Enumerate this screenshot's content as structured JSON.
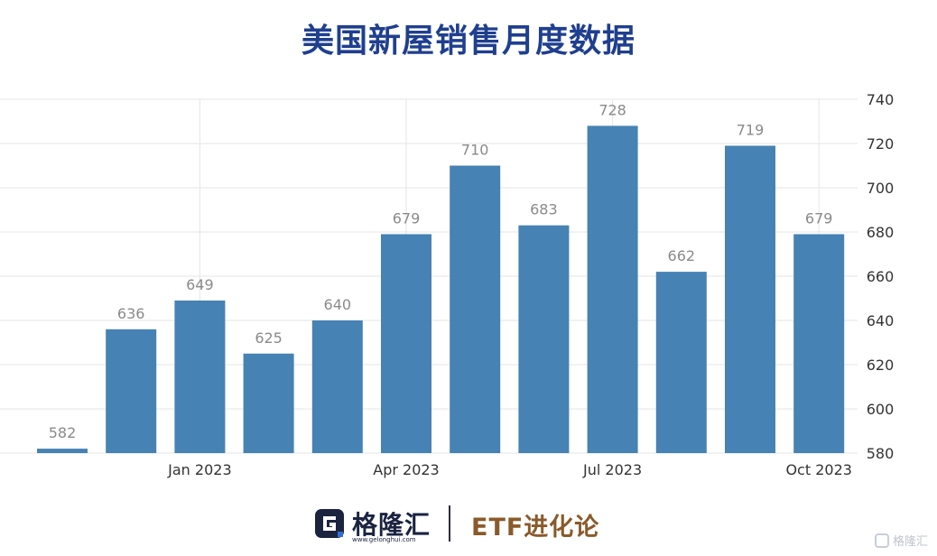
{
  "title": "美国新屋销售月度数据",
  "chart_data": {
    "type": "bar",
    "categories": [
      "",
      "",
      "Jan 2023",
      "",
      "",
      "Apr 2023",
      "",
      "",
      "Jul 2023",
      "",
      "",
      "Oct 2023"
    ],
    "values": [
      582,
      636,
      649,
      625,
      640,
      679,
      710,
      683,
      728,
      662,
      719,
      679
    ],
    "x_tick_labels": [
      "Jan 2023",
      "Apr 2023",
      "Jul 2023",
      "Oct 2023"
    ],
    "y_ticks": [
      580,
      600,
      620,
      640,
      660,
      680,
      700,
      720,
      740
    ],
    "ylim": [
      580,
      740
    ],
    "y_axis_side": "right",
    "grid": true,
    "bar_color": "#4682b4",
    "label_color": "#8a8a8a",
    "grid_color": "#e6e6e6"
  },
  "footer": {
    "logo_name": "格隆汇",
    "logo_url": "www.gelonghui.com",
    "brand": "ETF进化论",
    "watermark": "格隆汇"
  },
  "icons": {
    "logo": "gelonghui-g-logo-icon",
    "watermark": "gelonghui-watermark-icon"
  }
}
